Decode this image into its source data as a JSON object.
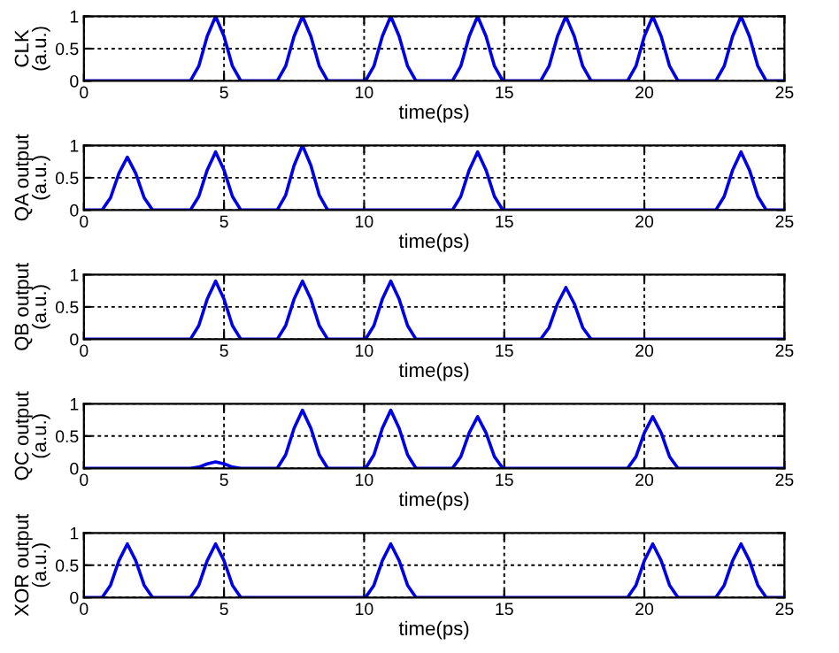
{
  "chart_data": [
    {
      "type": "line",
      "ylabel": "CLK\n(a.u.)",
      "xlabel": "time(ps)",
      "xlim": [
        0,
        25
      ],
      "ylim": [
        0,
        1
      ],
      "xticks": [
        0,
        5,
        10,
        15,
        20,
        25
      ],
      "yticks": [
        0,
        0.5,
        1
      ],
      "grid": true,
      "series": [
        {
          "color": "#0000e6",
          "x": [
            0,
            3.8,
            4.1,
            4.4,
            4.7,
            5.0,
            5.3,
            5.6,
            6.9,
            7.2,
            7.5,
            7.8,
            8.1,
            8.4,
            8.7,
            10.05,
            10.35,
            10.65,
            10.95,
            11.25,
            11.55,
            11.85,
            13.15,
            13.45,
            13.75,
            14.05,
            14.35,
            14.65,
            14.95,
            16.3,
            16.6,
            16.9,
            17.2,
            17.5,
            17.8,
            18.1,
            19.4,
            19.7,
            20.0,
            20.3,
            20.6,
            20.9,
            21.2,
            22.55,
            22.85,
            23.15,
            23.45,
            23.75,
            24.05,
            24.35,
            25
          ],
          "values": [
            0,
            0,
            0.23,
            0.69,
            1,
            0.69,
            0.23,
            0,
            0,
            0.23,
            0.69,
            1,
            0.69,
            0.23,
            0,
            0,
            0.23,
            0.69,
            1,
            0.69,
            0.23,
            0,
            0,
            0.23,
            0.69,
            1,
            0.69,
            0.23,
            0,
            0,
            0.23,
            0.69,
            1,
            0.69,
            0.23,
            0,
            0,
            0.23,
            0.69,
            1,
            0.69,
            0.23,
            0,
            0,
            0.23,
            0.69,
            1,
            0.69,
            0.23,
            0,
            0
          ]
        }
      ]
    },
    {
      "type": "line",
      "ylabel": "QA output\n(a.u.)",
      "xlabel": "time(ps)",
      "xlim": [
        0,
        25
      ],
      "ylim": [
        0,
        1
      ],
      "xticks": [
        0,
        5,
        10,
        15,
        20,
        25
      ],
      "yticks": [
        0,
        0.5,
        1
      ],
      "grid": true,
      "series": [
        {
          "color": "#0000e6",
          "x": [
            0,
            0.65,
            0.95,
            1.25,
            1.55,
            1.85,
            2.15,
            2.45,
            3.8,
            4.1,
            4.4,
            4.7,
            5.0,
            5.3,
            5.6,
            6.9,
            7.2,
            7.5,
            7.8,
            8.1,
            8.4,
            8.7,
            13.15,
            13.45,
            13.75,
            14.05,
            14.35,
            14.65,
            14.95,
            22.55,
            22.85,
            23.15,
            23.45,
            23.75,
            24.05,
            24.35,
            25
          ],
          "values": [
            0,
            0,
            0.19,
            0.57,
            0.82,
            0.57,
            0.19,
            0,
            0,
            0.21,
            0.62,
            0.9,
            0.62,
            0.21,
            0,
            0,
            0.23,
            0.69,
            1,
            0.69,
            0.23,
            0,
            0,
            0.21,
            0.62,
            0.9,
            0.62,
            0.21,
            0,
            0,
            0.21,
            0.62,
            0.9,
            0.62,
            0.21,
            0,
            0
          ]
        }
      ]
    },
    {
      "type": "line",
      "ylabel": "QB output\n(a.u.)",
      "xlabel": "time(ps)",
      "xlim": [
        0,
        25
      ],
      "ylim": [
        0,
        1
      ],
      "xticks": [
        0,
        5,
        10,
        15,
        20,
        25
      ],
      "yticks": [
        0,
        0.5,
        1
      ],
      "grid": true,
      "series": [
        {
          "color": "#0000e6",
          "x": [
            0,
            3.8,
            4.1,
            4.4,
            4.7,
            5.0,
            5.3,
            5.6,
            6.9,
            7.2,
            7.5,
            7.8,
            8.1,
            8.4,
            8.7,
            10.05,
            10.35,
            10.65,
            10.95,
            11.25,
            11.55,
            11.85,
            16.3,
            16.6,
            16.9,
            17.2,
            17.5,
            17.8,
            18.1,
            25
          ],
          "values": [
            0,
            0,
            0.21,
            0.62,
            0.9,
            0.62,
            0.21,
            0,
            0,
            0.21,
            0.62,
            0.9,
            0.62,
            0.21,
            0,
            0,
            0.21,
            0.62,
            0.9,
            0.62,
            0.21,
            0,
            0,
            0.18,
            0.55,
            0.8,
            0.55,
            0.18,
            0,
            0
          ]
        }
      ]
    },
    {
      "type": "line",
      "ylabel": "QC output\n(a.u.)",
      "xlabel": "time(ps)",
      "xlim": [
        0,
        25
      ],
      "ylim": [
        0,
        1
      ],
      "xticks": [
        0,
        5,
        10,
        15,
        20,
        25
      ],
      "yticks": [
        0,
        0.5,
        1
      ],
      "grid": true,
      "series": [
        {
          "color": "#0000e6",
          "x": [
            0,
            3.8,
            4.1,
            4.4,
            4.7,
            5.0,
            5.3,
            5.6,
            6.9,
            7.2,
            7.5,
            7.8,
            8.1,
            8.4,
            8.7,
            10.05,
            10.35,
            10.65,
            10.95,
            11.25,
            11.55,
            11.85,
            13.15,
            13.45,
            13.75,
            14.05,
            14.35,
            14.65,
            14.95,
            19.4,
            19.7,
            20.0,
            20.3,
            20.6,
            20.9,
            21.2,
            25
          ],
          "values": [
            0,
            0,
            0.02,
            0.07,
            0.1,
            0.07,
            0.02,
            0,
            0,
            0.21,
            0.62,
            0.9,
            0.62,
            0.21,
            0,
            0,
            0.21,
            0.62,
            0.9,
            0.62,
            0.21,
            0,
            0,
            0.18,
            0.55,
            0.8,
            0.55,
            0.18,
            0,
            0,
            0.18,
            0.55,
            0.8,
            0.55,
            0.18,
            0,
            0
          ]
        }
      ]
    },
    {
      "type": "line",
      "ylabel": "XOR output\n(a.u.)",
      "xlabel": "time(ps)",
      "xlim": [
        0,
        25
      ],
      "ylim": [
        0,
        1
      ],
      "xticks": [
        0,
        5,
        10,
        15,
        20,
        25
      ],
      "yticks": [
        0,
        0.5,
        1
      ],
      "grid": true,
      "series": [
        {
          "color": "#0000e6",
          "x": [
            0,
            0.65,
            0.95,
            1.25,
            1.55,
            1.85,
            2.15,
            2.45,
            3.8,
            4.1,
            4.4,
            4.7,
            5.0,
            5.3,
            5.6,
            10.05,
            10.35,
            10.65,
            10.95,
            11.25,
            11.55,
            11.85,
            19.4,
            19.7,
            20.0,
            20.3,
            20.6,
            20.9,
            21.2,
            22.55,
            22.85,
            23.15,
            23.45,
            23.75,
            24.05,
            24.35,
            25
          ],
          "values": [
            0,
            0,
            0.19,
            0.57,
            0.83,
            0.57,
            0.19,
            0,
            0,
            0.19,
            0.57,
            0.83,
            0.57,
            0.19,
            0,
            0,
            0.19,
            0.57,
            0.83,
            0.57,
            0.19,
            0,
            0,
            0.19,
            0.57,
            0.83,
            0.57,
            0.19,
            0,
            0,
            0.19,
            0.57,
            0.83,
            0.57,
            0.19,
            0,
            0
          ]
        }
      ]
    }
  ]
}
